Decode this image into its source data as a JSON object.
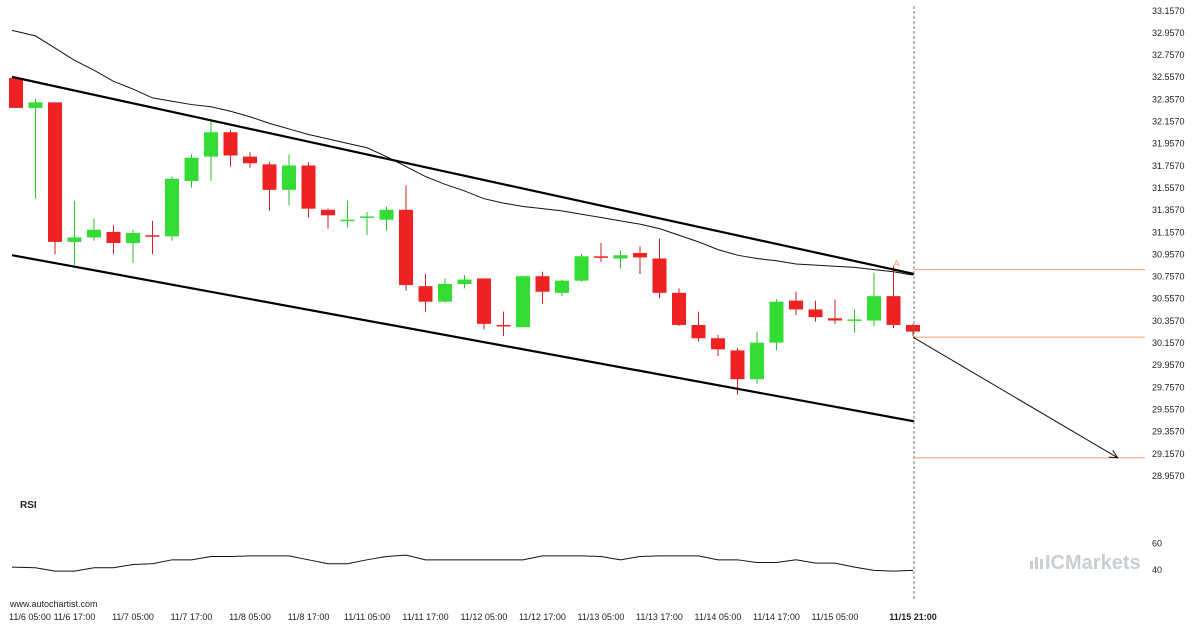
{
  "chart_data": {
    "type": "candlestick",
    "candle_interval_hours": 12,
    "x_tick_labels": [
      "11/6 05:00",
      "11/6 17:00",
      "11/7 05:00",
      "11/7 17:00",
      "11/8 05:00",
      "11/8 17:00",
      "11/11 05:00",
      "11/11 17:00",
      "11/12 05:00",
      "11/12 17:00",
      "11/13 05:00",
      "11/13 17:00",
      "11/14 05:00",
      "11/14 17:00",
      "11/15 05:00",
      "11/15 21:00"
    ],
    "y_tick_labels": [
      "33.1570",
      "32.9570",
      "32.7570",
      "32.5570",
      "32.3570",
      "32.1570",
      "31.9570",
      "31.7570",
      "31.5570",
      "31.3570",
      "31.1570",
      "30.9570",
      "30.7570",
      "30.5570",
      "30.3570",
      "30.1570",
      "29.9570",
      "29.7570",
      "29.5570",
      "29.3570",
      "29.1570",
      "28.9570"
    ],
    "ylim": [
      28.92,
      33.2
    ],
    "candles": [
      {
        "o": 32.55,
        "h": 32.55,
        "l": 32.28,
        "c": 32.28
      },
      {
        "o": 32.28,
        "h": 32.36,
        "l": 31.46,
        "c": 32.33
      },
      {
        "o": 32.33,
        "h": 32.33,
        "l": 30.96,
        "c": 31.07
      },
      {
        "o": 31.07,
        "h": 31.44,
        "l": 30.86,
        "c": 31.11
      },
      {
        "o": 31.11,
        "h": 31.28,
        "l": 31.08,
        "c": 31.18
      },
      {
        "o": 31.16,
        "h": 31.22,
        "l": 30.96,
        "c": 31.06
      },
      {
        "o": 31.06,
        "h": 31.18,
        "l": 30.88,
        "c": 31.15
      },
      {
        "o": 31.13,
        "h": 31.26,
        "l": 30.96,
        "c": 31.12
      },
      {
        "o": 31.12,
        "h": 31.66,
        "l": 31.08,
        "c": 31.64
      },
      {
        "o": 31.62,
        "h": 31.86,
        "l": 31.56,
        "c": 31.83
      },
      {
        "o": 31.84,
        "h": 32.16,
        "l": 31.62,
        "c": 32.06
      },
      {
        "o": 32.06,
        "h": 32.08,
        "l": 31.75,
        "c": 31.85
      },
      {
        "o": 31.84,
        "h": 31.88,
        "l": 31.74,
        "c": 31.78
      },
      {
        "o": 31.77,
        "h": 31.79,
        "l": 31.35,
        "c": 31.54
      },
      {
        "o": 31.54,
        "h": 31.86,
        "l": 31.4,
        "c": 31.76
      },
      {
        "o": 31.76,
        "h": 31.79,
        "l": 31.29,
        "c": 31.37
      },
      {
        "o": 31.36,
        "h": 31.37,
        "l": 31.19,
        "c": 31.31
      },
      {
        "o": 31.26,
        "h": 31.44,
        "l": 31.2,
        "c": 31.27
      },
      {
        "o": 31.29,
        "h": 31.34,
        "l": 31.13,
        "c": 31.3
      },
      {
        "o": 31.27,
        "h": 31.39,
        "l": 31.17,
        "c": 31.36
      },
      {
        "o": 31.36,
        "h": 31.58,
        "l": 30.63,
        "c": 30.68
      },
      {
        "o": 30.67,
        "h": 30.78,
        "l": 30.44,
        "c": 30.53
      },
      {
        "o": 30.53,
        "h": 30.74,
        "l": 30.52,
        "c": 30.69
      },
      {
        "o": 30.69,
        "h": 30.77,
        "l": 30.65,
        "c": 30.73
      },
      {
        "o": 30.74,
        "h": 30.74,
        "l": 30.28,
        "c": 30.33
      },
      {
        "o": 30.32,
        "h": 30.44,
        "l": 30.22,
        "c": 30.31
      },
      {
        "o": 30.3,
        "h": 30.76,
        "l": 30.3,
        "c": 30.76
      },
      {
        "o": 30.76,
        "h": 30.8,
        "l": 30.51,
        "c": 30.62
      },
      {
        "o": 30.61,
        "h": 30.73,
        "l": 30.58,
        "c": 30.72
      },
      {
        "o": 30.72,
        "h": 30.96,
        "l": 30.71,
        "c": 30.94
      },
      {
        "o": 30.94,
        "h": 31.06,
        "l": 30.89,
        "c": 30.93
      },
      {
        "o": 30.92,
        "h": 30.99,
        "l": 30.83,
        "c": 30.95
      },
      {
        "o": 30.97,
        "h": 31.03,
        "l": 30.78,
        "c": 30.93
      },
      {
        "o": 30.92,
        "h": 31.1,
        "l": 30.56,
        "c": 30.61
      },
      {
        "o": 30.61,
        "h": 30.65,
        "l": 30.31,
        "c": 30.32
      },
      {
        "o": 30.32,
        "h": 30.44,
        "l": 30.17,
        "c": 30.2
      },
      {
        "o": 30.2,
        "h": 30.23,
        "l": 30.04,
        "c": 30.1
      },
      {
        "o": 30.09,
        "h": 30.11,
        "l": 29.69,
        "c": 29.83
      },
      {
        "o": 29.83,
        "h": 30.26,
        "l": 29.79,
        "c": 30.16
      },
      {
        "o": 30.16,
        "h": 30.55,
        "l": 30.09,
        "c": 30.53
      },
      {
        "o": 30.54,
        "h": 30.62,
        "l": 30.41,
        "c": 30.46
      },
      {
        "o": 30.46,
        "h": 30.54,
        "l": 30.35,
        "c": 30.39
      },
      {
        "o": 30.38,
        "h": 30.55,
        "l": 30.33,
        "c": 30.36
      },
      {
        "o": 30.37,
        "h": 30.46,
        "l": 30.25,
        "c": 30.37
      },
      {
        "o": 30.36,
        "h": 30.79,
        "l": 30.31,
        "c": 30.58
      },
      {
        "o": 30.58,
        "h": 30.85,
        "l": 30.29,
        "c": 30.32
      },
      {
        "o": 30.32,
        "h": 30.33,
        "l": 30.22,
        "c": 30.26
      }
    ],
    "moving_average": [
      [
        0,
        32.98
      ],
      [
        1,
        32.93
      ],
      [
        2,
        32.82
      ],
      [
        3,
        32.71
      ],
      [
        4,
        32.62
      ],
      [
        5,
        32.52
      ],
      [
        6,
        32.45
      ],
      [
        7,
        32.37
      ],
      [
        8,
        32.34
      ],
      [
        9,
        32.31
      ],
      [
        10,
        32.29
      ],
      [
        11,
        32.25
      ],
      [
        12,
        32.2
      ],
      [
        13,
        32.14
      ],
      [
        14,
        32.09
      ],
      [
        15,
        32.04
      ],
      [
        16,
        32.0
      ],
      [
        17,
        31.96
      ],
      [
        18,
        31.92
      ],
      [
        19,
        31.84
      ],
      [
        20,
        31.75
      ],
      [
        21,
        31.66
      ],
      [
        22,
        31.59
      ],
      [
        23,
        31.53
      ],
      [
        24,
        31.46
      ],
      [
        25,
        31.42
      ],
      [
        26,
        31.39
      ],
      [
        27,
        31.37
      ],
      [
        28,
        31.35
      ],
      [
        29,
        31.32
      ],
      [
        30,
        31.29
      ],
      [
        31,
        31.26
      ],
      [
        32,
        31.23
      ],
      [
        33,
        31.19
      ],
      [
        34,
        31.13
      ],
      [
        35,
        31.07
      ],
      [
        36,
        31.0
      ],
      [
        37,
        30.95
      ],
      [
        38,
        30.92
      ],
      [
        39,
        30.9
      ],
      [
        40,
        30.87
      ],
      [
        41,
        30.86
      ],
      [
        42,
        30.85
      ],
      [
        43,
        30.84
      ],
      [
        44,
        30.82
      ],
      [
        45,
        30.8
      ],
      [
        46,
        30.77
      ]
    ],
    "channel": {
      "upper": [
        [
          0,
          32.56
        ],
        [
          46,
          30.78
        ]
      ],
      "lower": [
        [
          0,
          30.95
        ],
        [
          46,
          29.45
        ]
      ]
    },
    "levels": {
      "pattern_end": 30.82,
      "current": 30.21,
      "target": 29.12
    },
    "forecast_arrow": [
      [
        46,
        30.21
      ],
      [
        56.5,
        29.12
      ]
    ],
    "pattern_marker": "A",
    "rsi": {
      "label": "RSI",
      "tick_labels": [
        "60",
        "40"
      ],
      "ylim": [
        30,
        70
      ],
      "values": [
        42,
        41.5,
        39,
        39,
        41.5,
        41.5,
        44,
        44.5,
        47.5,
        47.5,
        50,
        50,
        50.5,
        50.5,
        50.5,
        47.5,
        44.5,
        44.5,
        47.5,
        50,
        51,
        47.5,
        47.5,
        47.5,
        47.5,
        47.5,
        47.5,
        50.5,
        50.5,
        50.5,
        50,
        47.5,
        50,
        50.5,
        50.5,
        50.5,
        47.5,
        47.5,
        45.5,
        45.5,
        47.5,
        45,
        45,
        42,
        39.5,
        39,
        39.5
      ]
    },
    "colors": {
      "up": "#33dd33",
      "down": "#ee2222",
      "wick": "#555555",
      "channel": "#000000",
      "level": "#f09d70",
      "current_line": "#888888"
    }
  },
  "footer": {
    "source": "www.autochartist.com"
  },
  "brand": {
    "name": "ICMarkets",
    "prefix": "IC",
    "suffix": "Markets"
  }
}
